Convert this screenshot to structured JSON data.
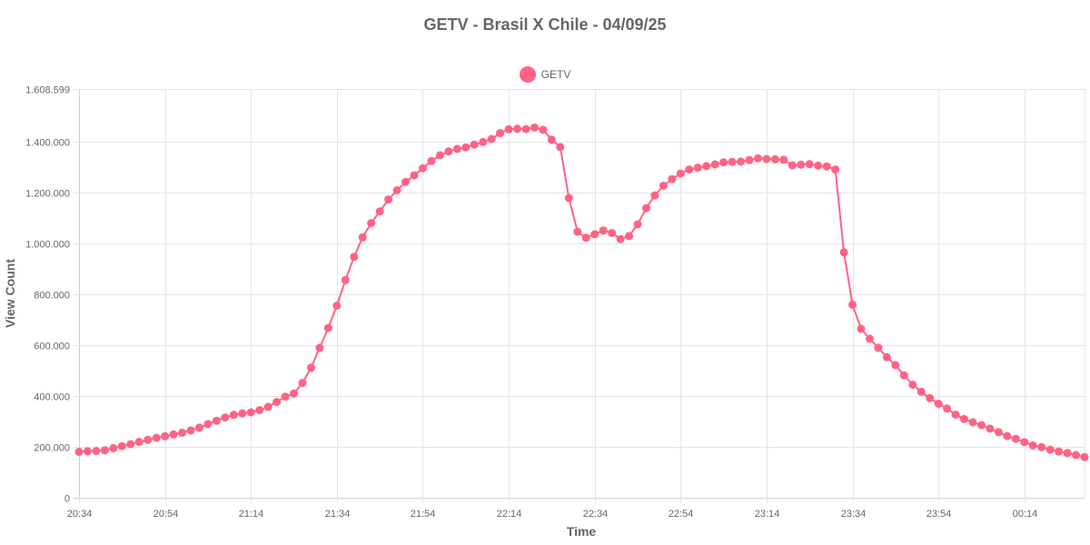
{
  "colors": {
    "series": "#ff6384",
    "grid": "#e5e5e5",
    "text": "#666666"
  },
  "chart_data": {
    "type": "line",
    "title": "GETV - Brasil X Chile - 04/09/25",
    "xlabel": "Time",
    "ylabel": "View Count",
    "legend": "top-center",
    "grid": true,
    "ylim": [
      0,
      1608599
    ],
    "y_ticks": [
      "0",
      "200.000",
      "400.000",
      "600.000",
      "800.000",
      "1.000.000",
      "1.200.000",
      "1.400.000",
      "1.608.599"
    ],
    "y_tick_values": [
      0,
      200000,
      400000,
      600000,
      800000,
      1000000,
      1200000,
      1400000,
      1608599
    ],
    "x_ticks": [
      "20:34",
      "20:54",
      "21:14",
      "21:34",
      "21:54",
      "22:14",
      "22:34",
      "22:54",
      "23:14",
      "23:34",
      "23:54",
      "00:14"
    ],
    "x_start": "20:34",
    "x_end": "00:28",
    "series": [
      {
        "name": "GETV",
        "points": [
          [
            "20:34",
            181000
          ],
          [
            "20:36",
            183000
          ],
          [
            "20:38",
            184000
          ],
          [
            "20:40",
            187000
          ],
          [
            "20:42",
            195000
          ],
          [
            "20:44",
            203000
          ],
          [
            "20:46",
            211000
          ],
          [
            "20:48",
            220000
          ],
          [
            "20:50",
            228000
          ],
          [
            "20:52",
            236000
          ],
          [
            "20:54",
            242000
          ],
          [
            "20:56",
            249000
          ],
          [
            "20:58",
            256000
          ],
          [
            "21:00",
            265000
          ],
          [
            "21:02",
            276000
          ],
          [
            "21:04",
            290000
          ],
          [
            "21:06",
            303000
          ],
          [
            "21:08",
            316000
          ],
          [
            "21:10",
            326000
          ],
          [
            "21:12",
            332000
          ],
          [
            "21:14",
            336000
          ],
          [
            "21:16",
            345000
          ],
          [
            "21:18",
            358000
          ],
          [
            "21:20",
            377000
          ],
          [
            "21:22",
            398000
          ],
          [
            "21:24",
            410000
          ],
          [
            "21:26",
            452000
          ],
          [
            "21:28",
            512000
          ],
          [
            "21:30",
            590000
          ],
          [
            "21:32",
            668000
          ],
          [
            "21:34",
            756000
          ],
          [
            "21:36",
            857000
          ],
          [
            "21:38",
            948000
          ],
          [
            "21:40",
            1025000
          ],
          [
            "21:42",
            1081000
          ],
          [
            "21:44",
            1127000
          ],
          [
            "21:46",
            1174000
          ],
          [
            "21:48",
            1210000
          ],
          [
            "21:50",
            1243000
          ],
          [
            "21:52",
            1269000
          ],
          [
            "21:54",
            1297000
          ],
          [
            "21:56",
            1325000
          ],
          [
            "21:58",
            1348000
          ],
          [
            "22:00",
            1363000
          ],
          [
            "22:02",
            1373000
          ],
          [
            "22:04",
            1379000
          ],
          [
            "22:06",
            1390000
          ],
          [
            "22:08",
            1400000
          ],
          [
            "22:10",
            1412000
          ],
          [
            "22:12",
            1435000
          ],
          [
            "22:14",
            1450000
          ],
          [
            "22:16",
            1452000
          ],
          [
            "22:18",
            1451000
          ],
          [
            "22:20",
            1457000
          ],
          [
            "22:22",
            1448000
          ],
          [
            "22:24",
            1409000
          ],
          [
            "22:26",
            1380000
          ],
          [
            "22:28",
            1180000
          ],
          [
            "22:30",
            1047000
          ],
          [
            "22:32",
            1023000
          ],
          [
            "22:34",
            1037000
          ],
          [
            "22:36",
            1052000
          ],
          [
            "22:38",
            1042000
          ],
          [
            "22:40",
            1018000
          ],
          [
            "22:42",
            1030000
          ],
          [
            "22:44",
            1076000
          ],
          [
            "22:46",
            1140000
          ],
          [
            "22:48",
            1190000
          ],
          [
            "22:50",
            1228000
          ],
          [
            "22:52",
            1254000
          ],
          [
            "22:54",
            1276000
          ],
          [
            "22:56",
            1292000
          ],
          [
            "22:58",
            1299000
          ],
          [
            "23:00",
            1305000
          ],
          [
            "23:02",
            1312000
          ],
          [
            "23:04",
            1320000
          ],
          [
            "23:06",
            1322000
          ],
          [
            "23:08",
            1323000
          ],
          [
            "23:10",
            1329000
          ],
          [
            "23:12",
            1336000
          ],
          [
            "23:14",
            1333000
          ],
          [
            "23:16",
            1332000
          ],
          [
            "23:18",
            1330000
          ],
          [
            "23:20",
            1308000
          ],
          [
            "23:22",
            1311000
          ],
          [
            "23:24",
            1313000
          ],
          [
            "23:26",
            1307000
          ],
          [
            "23:28",
            1304000
          ],
          [
            "23:30",
            1292000
          ],
          [
            "23:32",
            966000
          ],
          [
            "23:34",
            760000
          ],
          [
            "23:36",
            665000
          ],
          [
            "23:38",
            626000
          ],
          [
            "23:40",
            590000
          ],
          [
            "23:42",
            553000
          ],
          [
            "23:44",
            522000
          ],
          [
            "23:46",
            482000
          ],
          [
            "23:48",
            445000
          ],
          [
            "23:50",
            417000
          ],
          [
            "23:52",
            392000
          ],
          [
            "23:54",
            370000
          ],
          [
            "23:56",
            351000
          ],
          [
            "23:58",
            327000
          ],
          [
            "00:00",
            310000
          ],
          [
            "00:02",
            297000
          ],
          [
            "00:04",
            286000
          ],
          [
            "00:06",
            272000
          ],
          [
            "00:08",
            258000
          ],
          [
            "00:10",
            243000
          ],
          [
            "00:12",
            232000
          ],
          [
            "00:14",
            219000
          ],
          [
            "00:16",
            206000
          ],
          [
            "00:18",
            199000
          ],
          [
            "00:20",
            189000
          ],
          [
            "00:22",
            182000
          ],
          [
            "00:24",
            176000
          ],
          [
            "00:26",
            168000
          ],
          [
            "00:28",
            160000
          ]
        ]
      }
    ]
  }
}
